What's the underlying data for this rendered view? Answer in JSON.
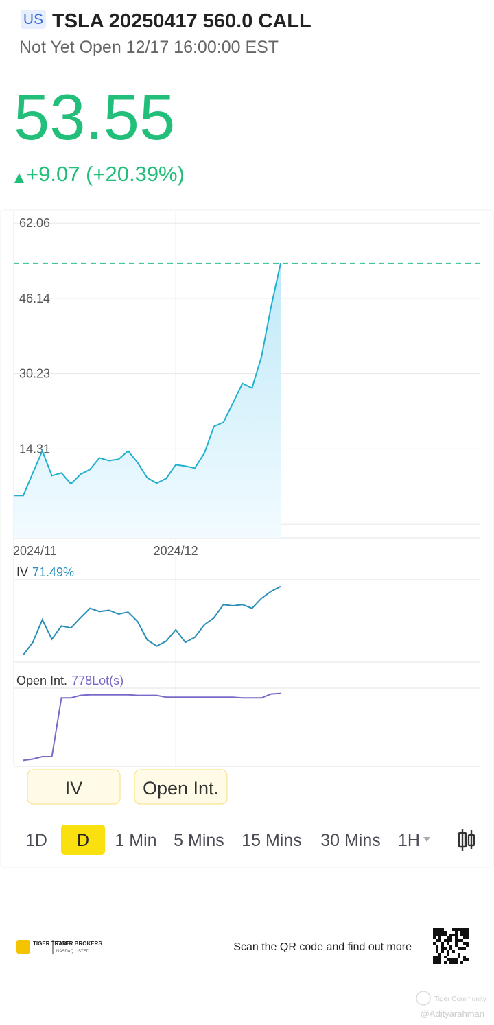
{
  "header": {
    "market": "US",
    "title": "TSLA 20250417 560.0 CALL",
    "status": "Not Yet Open 12/17 16:00:00 EST"
  },
  "quote": {
    "price": 53.55,
    "change": "+9.07 (+20.39%)"
  },
  "chart_data": [
    {
      "type": "line",
      "name": "price",
      "categories": [
        "2024/11",
        null,
        null,
        null,
        null,
        null,
        null,
        null,
        null,
        null,
        null,
        null,
        null,
        null,
        null,
        null,
        null,
        "2024/12",
        null,
        null,
        null,
        null,
        null,
        null,
        null,
        null,
        null,
        null,
        null
      ],
      "values": [
        4.46,
        4.46,
        9.23,
        13.87,
        8.66,
        9.23,
        6.92,
        8.95,
        9.96,
        12.42,
        11.84,
        12.13,
        13.87,
        11.41,
        8.22,
        7.06,
        8.08,
        10.97,
        10.68,
        10.25,
        13.43,
        19.08,
        19.94,
        24.0,
        28.19,
        27.18,
        33.84,
        44.4,
        53.55
      ],
      "color": "#1fb0d0",
      "area": true,
      "ylim": [
        -4.5,
        64.7
      ],
      "yticks": [
        62.06,
        46.14,
        30.23,
        14.31,
        {
          "value": -1.61,
          "label": "--"
        }
      ],
      "grid": true
    },
    {
      "type": "line",
      "name": "iv",
      "label": "IV",
      "latest_label": "71.49%",
      "values": [
        null,
        57.88,
        60.38,
        64.88,
        61.0,
        63.63,
        63.25,
        65.25,
        67.13,
        66.5,
        66.75,
        66.0,
        66.38,
        64.5,
        60.88,
        59.63,
        60.63,
        62.88,
        60.38,
        61.38,
        63.88,
        65.25,
        67.88,
        67.63,
        67.88,
        67.13,
        69.13,
        70.5,
        71.49
      ],
      "color": "#2a8fb8",
      "ylim": [
        57,
        72
      ]
    },
    {
      "type": "line",
      "name": "open-interest",
      "label": "Open Int.",
      "latest_label": "778Lot(s)",
      "values": [
        null,
        35,
        49,
        76,
        76,
        728,
        728,
        755,
        762,
        762,
        762,
        762,
        762,
        755,
        755,
        755,
        735,
        735,
        735,
        735,
        735,
        735,
        735,
        735,
        728,
        728,
        728,
        770,
        778
      ],
      "color": "#7b68c8",
      "ylim": [
        0,
        790
      ]
    }
  ],
  "indicator_buttons": [
    "IV",
    "Open Int."
  ],
  "periods": [
    "1D",
    "D",
    "1 Min",
    "5 Mins",
    "15 Mins",
    "30 Mins",
    "1H"
  ],
  "selected_period": 1,
  "footer": {
    "brand": "TIGER TRADE",
    "broker": "TIGER BROKERS",
    "broker_sub": "NASDAQ LISTED",
    "qr_text": "Scan the QR code and find out more",
    "watermark": "Tiger Community",
    "handle": "@Adityarahman"
  }
}
